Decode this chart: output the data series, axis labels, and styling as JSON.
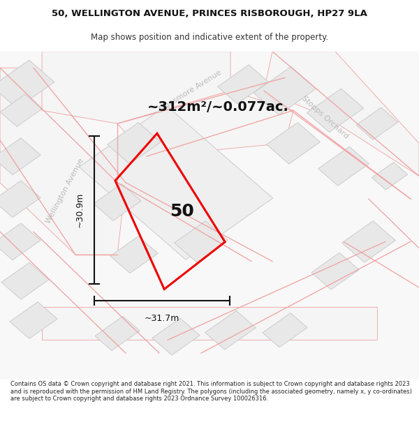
{
  "title_line1": "50, WELLINGTON AVENUE, PRINCES RISBOROUGH, HP27 9LA",
  "title_line2": "Map shows position and indicative extent of the property.",
  "area_text": "~312m²/~0.077ac.",
  "label_50": "50",
  "dim_height": "~30.9m",
  "dim_width": "~31.7m",
  "footer_text": "Contains OS data © Crown copyright and database right 2021. This information is subject to Crown copyright and database rights 2023 and is reproduced with the permission of HM Land Registry. The polygons (including the associated geometry, namely x, y co-ordinates) are subject to Crown copyright and database rights 2023 Ordnance Survey 100026316.",
  "bg_color": "#ffffff",
  "map_bg": "#f8f8f8",
  "building_fill": "#e8e8e8",
  "building_edge": "#cccccc",
  "road_fill": "#f5f5f5",
  "road_outline": "#f0a0a0",
  "red_line_color": "#ee0000",
  "street_label_color": "#bbbbbb",
  "dim_line_color": "#111111",
  "figsize": [
    6.0,
    6.25
  ],
  "dpi": 100,
  "title_fontsize": 9.5,
  "subtitle_fontsize": 8.5,
  "area_fontsize": 14,
  "label50_fontsize": 18,
  "dim_fontsize": 9,
  "street_fontsize": 8,
  "footer_fontsize": 6.0
}
